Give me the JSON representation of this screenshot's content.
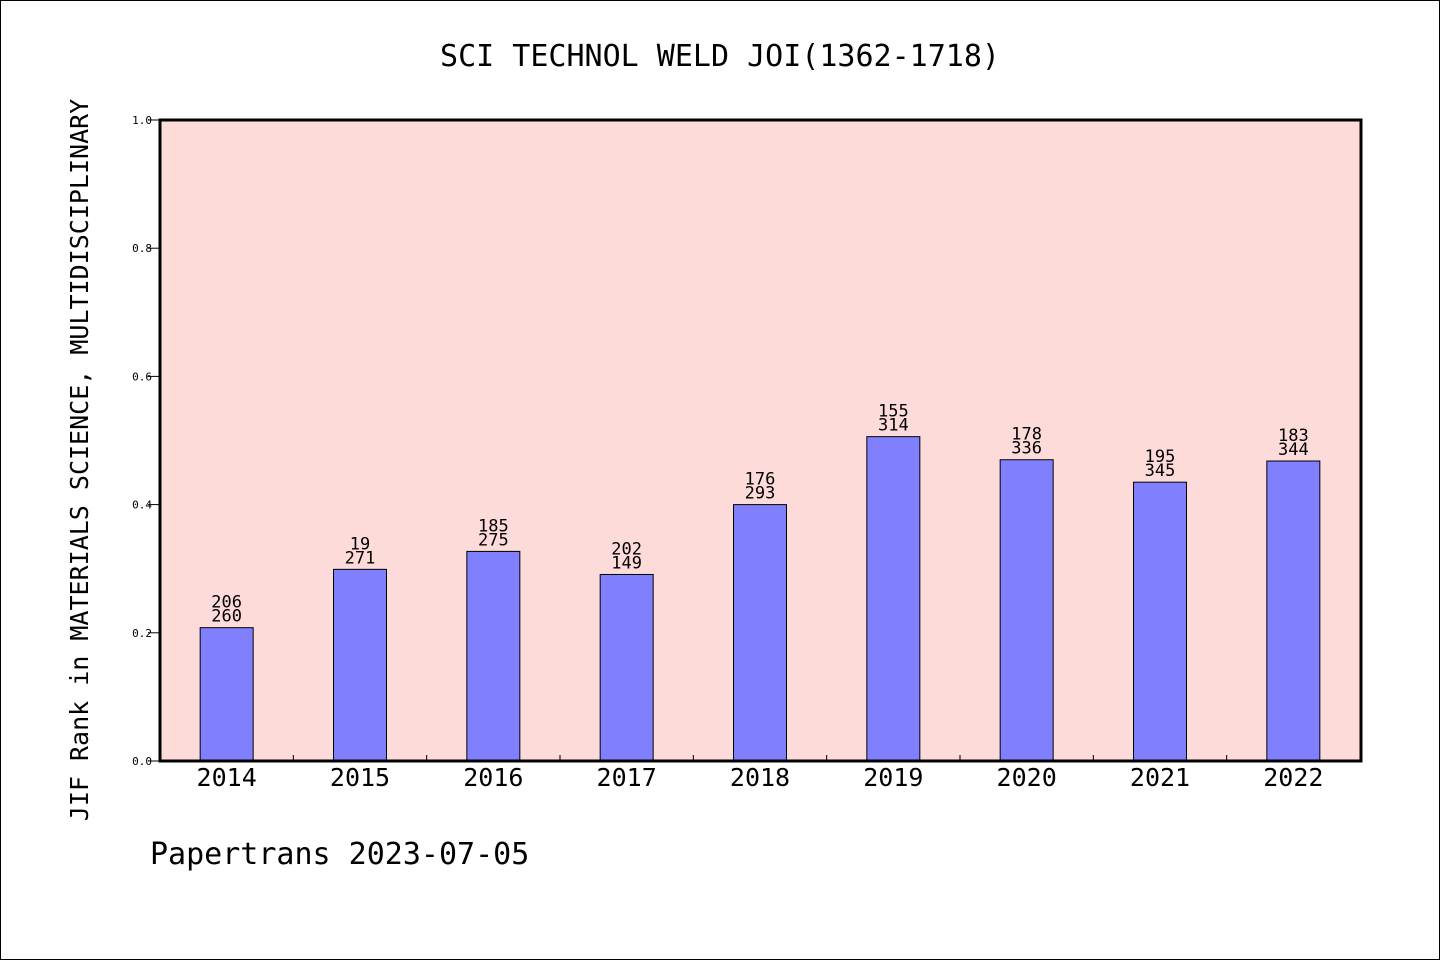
{
  "chart_data": {
    "type": "bar",
    "title": "SCI TECHNOL WELD JOI(1362-1718)",
    "xlabel": "",
    "ylabel": "JIF Rank in MATERIALS SCIENCE, MULTIDISCIPLINARY",
    "ylim": [
      0,
      1.0
    ],
    "yticks": [
      "0.0",
      "0.2",
      "0.4",
      "0.6",
      "0.8",
      "1.0"
    ],
    "categories": [
      "2014",
      "2015",
      "2016",
      "2017",
      "2018",
      "2019",
      "2020",
      "2021",
      "2022"
    ],
    "values": [
      0.208,
      0.299,
      0.327,
      0.291,
      0.4,
      0.506,
      0.47,
      0.435,
      0.468
    ],
    "labels_top": [
      "206",
      "19",
      "185",
      "202",
      "176",
      "155",
      "178",
      "195",
      "183"
    ],
    "labels_bottom": [
      "260",
      "271",
      "275",
      "149",
      "293",
      "314",
      "336",
      "345",
      "344"
    ],
    "grid": false,
    "colors": {
      "plot_background": "#fddbd8",
      "bar_fill": "#8080ff",
      "bar_stroke": "#000000"
    },
    "footer": "Papertrans 2023-07-05"
  }
}
